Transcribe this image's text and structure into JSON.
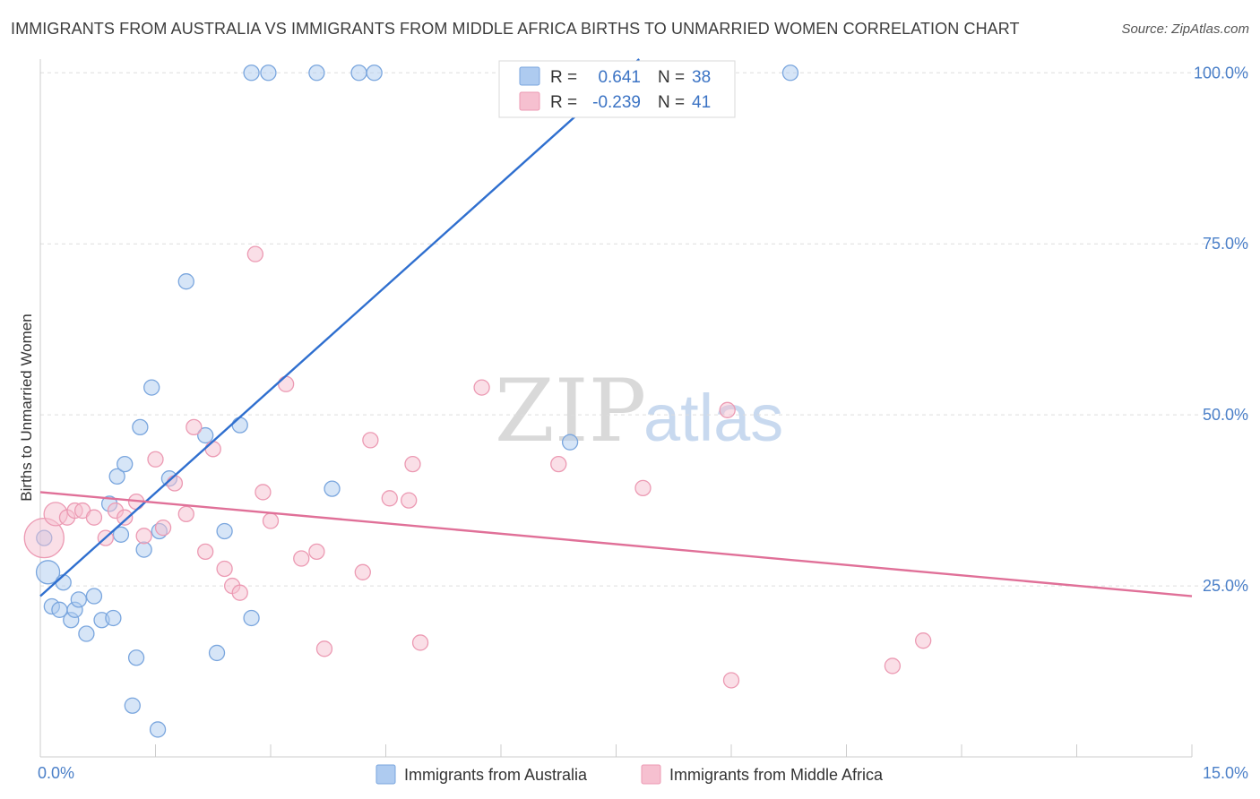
{
  "title": "IMMIGRANTS FROM AUSTRALIA VS IMMIGRANTS FROM MIDDLE AFRICA BIRTHS TO UNMARRIED WOMEN CORRELATION CHART",
  "source": "Source: ZipAtlas.com",
  "watermark": {
    "part1": "ZIP",
    "part2": "atlas"
  },
  "colors": {
    "blue_fill": "#aecbf0",
    "blue_stroke": "#7aa6de",
    "blue_line": "#2f6fcf",
    "pink_fill": "#f6c0d0",
    "pink_stroke": "#ec9ab3",
    "pink_line": "#e07098",
    "axis_text": "#4a7fc8",
    "grid": "#dddddd"
  },
  "stats": [
    {
      "r_label": "R =",
      "r_value": "0.641",
      "n_label": "N =",
      "n_value": "38"
    },
    {
      "r_label": "R =",
      "r_value": "-0.239",
      "n_label": "N =",
      "n_value": "41"
    }
  ],
  "legend": [
    "Immigrants from Australia",
    "Immigrants from Middle Africa"
  ],
  "chart_data": {
    "type": "scatter",
    "title": "IMMIGRANTS FROM AUSTRALIA VS IMMIGRANTS FROM MIDDLE AFRICA BIRTHS TO UNMARRIED WOMEN CORRELATION CHART",
    "xlabel": "",
    "ylabel": "Births to Unmarried Women",
    "xlim": [
      0,
      15
    ],
    "ylim": [
      0,
      102
    ],
    "x_tick_labels": [
      {
        "value": 0,
        "label": "0.0%"
      },
      {
        "value": 15,
        "label": "15.0%"
      }
    ],
    "y_tick_labels": [
      {
        "value": 25,
        "label": "25.0%"
      },
      {
        "value": 50,
        "label": "50.0%"
      },
      {
        "value": 75,
        "label": "75.0%"
      },
      {
        "value": 100,
        "label": "100.0%"
      }
    ],
    "x_minor_ticks": [
      1.5,
      3,
      4.5,
      6,
      7.5,
      9,
      10.5,
      12,
      13.5,
      15
    ],
    "series": [
      {
        "name": "Immigrants from Australia",
        "color": "blue",
        "trend": {
          "x": [
            0,
            7.8
          ],
          "y": [
            23.5,
            102
          ]
        },
        "points": [
          {
            "x": 0.1,
            "y": 27,
            "s": 2
          },
          {
            "x": 0.15,
            "y": 22,
            "s": 1
          },
          {
            "x": 0.25,
            "y": 21.5,
            "s": 1
          },
          {
            "x": 0.3,
            "y": 25.5,
            "s": 1
          },
          {
            "x": 0.4,
            "y": 20,
            "s": 1
          },
          {
            "x": 0.45,
            "y": 21.5,
            "s": 1
          },
          {
            "x": 0.5,
            "y": 23,
            "s": 1
          },
          {
            "x": 0.6,
            "y": 18,
            "s": 1
          },
          {
            "x": 0.7,
            "y": 23.5,
            "s": 1
          },
          {
            "x": 0.8,
            "y": 20,
            "s": 1
          },
          {
            "x": 0.9,
            "y": 37,
            "s": 1
          },
          {
            "x": 0.95,
            "y": 20.3,
            "s": 1
          },
          {
            "x": 1.0,
            "y": 41,
            "s": 1
          },
          {
            "x": 1.05,
            "y": 32.5,
            "s": 1
          },
          {
            "x": 1.1,
            "y": 42.8,
            "s": 1
          },
          {
            "x": 1.2,
            "y": 7.5,
            "s": 1
          },
          {
            "x": 1.25,
            "y": 14.5,
            "s": 1
          },
          {
            "x": 1.3,
            "y": 48.2,
            "s": 1
          },
          {
            "x": 1.35,
            "y": 30.3,
            "s": 1
          },
          {
            "x": 1.45,
            "y": 54,
            "s": 1
          },
          {
            "x": 1.53,
            "y": 4,
            "s": 1
          },
          {
            "x": 1.55,
            "y": 33,
            "s": 1
          },
          {
            "x": 1.68,
            "y": 40.7,
            "s": 1
          },
          {
            "x": 1.9,
            "y": 69.5,
            "s": 1
          },
          {
            "x": 2.15,
            "y": 47,
            "s": 1
          },
          {
            "x": 2.3,
            "y": 15.2,
            "s": 1
          },
          {
            "x": 2.4,
            "y": 33,
            "s": 1
          },
          {
            "x": 2.6,
            "y": 48.5,
            "s": 1
          },
          {
            "x": 2.75,
            "y": 20.3,
            "s": 1
          },
          {
            "x": 2.75,
            "y": 100,
            "s": 1
          },
          {
            "x": 2.97,
            "y": 100,
            "s": 1
          },
          {
            "x": 3.6,
            "y": 100,
            "s": 1
          },
          {
            "x": 3.8,
            "y": 39.2,
            "s": 1
          },
          {
            "x": 4.15,
            "y": 100,
            "s": 1
          },
          {
            "x": 4.35,
            "y": 100,
            "s": 1
          },
          {
            "x": 6.9,
            "y": 46,
            "s": 1
          },
          {
            "x": 9.77,
            "y": 100,
            "s": 1
          },
          {
            "x": 0.05,
            "y": 32,
            "s": 1
          }
        ]
      },
      {
        "name": "Immigrants from Middle Africa",
        "color": "pink",
        "trend": {
          "x": [
            0,
            15
          ],
          "y": [
            38.7,
            23.5
          ]
        },
        "points": [
          {
            "x": 0.05,
            "y": 32,
            "s": 3
          },
          {
            "x": 0.2,
            "y": 35.5,
            "s": 2
          },
          {
            "x": 0.35,
            "y": 35,
            "s": 1
          },
          {
            "x": 0.45,
            "y": 36,
            "s": 1
          },
          {
            "x": 0.55,
            "y": 36,
            "s": 1
          },
          {
            "x": 0.7,
            "y": 35,
            "s": 1
          },
          {
            "x": 0.85,
            "y": 32,
            "s": 1
          },
          {
            "x": 0.98,
            "y": 36,
            "s": 1
          },
          {
            "x": 1.1,
            "y": 35,
            "s": 1
          },
          {
            "x": 1.25,
            "y": 37.3,
            "s": 1
          },
          {
            "x": 1.35,
            "y": 32.3,
            "s": 1
          },
          {
            "x": 1.5,
            "y": 43.5,
            "s": 1
          },
          {
            "x": 1.6,
            "y": 33.5,
            "s": 1
          },
          {
            "x": 1.75,
            "y": 40,
            "s": 1
          },
          {
            "x": 1.9,
            "y": 35.5,
            "s": 1
          },
          {
            "x": 2.0,
            "y": 48.2,
            "s": 1
          },
          {
            "x": 2.15,
            "y": 30,
            "s": 1
          },
          {
            "x": 2.25,
            "y": 45,
            "s": 1
          },
          {
            "x": 2.4,
            "y": 27.5,
            "s": 1
          },
          {
            "x": 2.5,
            "y": 25,
            "s": 1
          },
          {
            "x": 2.6,
            "y": 24,
            "s": 1
          },
          {
            "x": 2.8,
            "y": 73.5,
            "s": 1
          },
          {
            "x": 2.9,
            "y": 38.7,
            "s": 1
          },
          {
            "x": 3.0,
            "y": 34.5,
            "s": 1
          },
          {
            "x": 3.2,
            "y": 54.5,
            "s": 1
          },
          {
            "x": 3.4,
            "y": 29,
            "s": 1
          },
          {
            "x": 3.6,
            "y": 30,
            "s": 1
          },
          {
            "x": 3.7,
            "y": 15.8,
            "s": 1
          },
          {
            "x": 4.2,
            "y": 27,
            "s": 1
          },
          {
            "x": 4.3,
            "y": 46.3,
            "s": 1
          },
          {
            "x": 4.55,
            "y": 37.8,
            "s": 1
          },
          {
            "x": 4.8,
            "y": 37.5,
            "s": 1
          },
          {
            "x": 4.85,
            "y": 42.8,
            "s": 1
          },
          {
            "x": 4.95,
            "y": 16.7,
            "s": 1
          },
          {
            "x": 5.75,
            "y": 54,
            "s": 1
          },
          {
            "x": 6.75,
            "y": 42.8,
            "s": 1
          },
          {
            "x": 7.85,
            "y": 39.3,
            "s": 1
          },
          {
            "x": 8.95,
            "y": 50.7,
            "s": 1
          },
          {
            "x": 9.0,
            "y": 11.2,
            "s": 1
          },
          {
            "x": 11.1,
            "y": 13.3,
            "s": 1
          },
          {
            "x": 11.5,
            "y": 17,
            "s": 1
          }
        ]
      }
    ]
  }
}
